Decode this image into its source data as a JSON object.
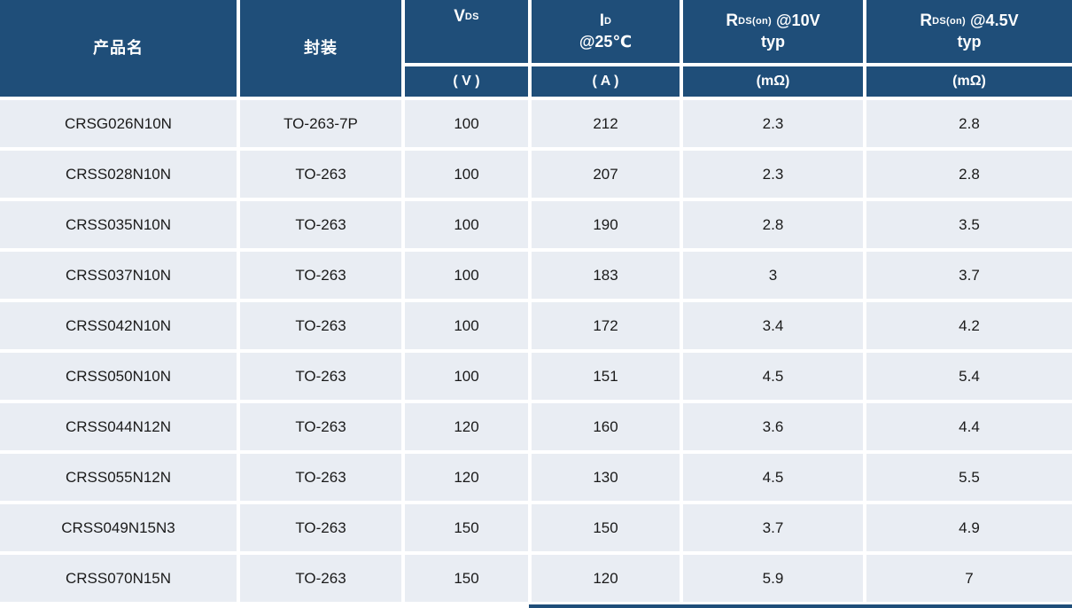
{
  "chart_data": {
    "type": "table",
    "header": {
      "product": "产品名",
      "package": "封装",
      "vds": {
        "symbol": "V",
        "sub": "DS",
        "unit": "( V )"
      },
      "id": {
        "symbol": "I",
        "sub": "D",
        "line2": "@25℃",
        "unit": "( A )"
      },
      "rds_10v": {
        "symbol": "R",
        "sub": "DS(on)",
        "cond": "@10V",
        "line2": "typ",
        "unit": "(mΩ)"
      },
      "rds_4v5": {
        "symbol": "R",
        "sub": "DS(on)",
        "cond": "@4.5V",
        "line2": "typ",
        "unit": "(mΩ)"
      }
    },
    "rows": [
      [
        "CRSG026N10N",
        "TO-263-7P",
        "100",
        "212",
        "2.3",
        "2.8"
      ],
      [
        "CRSS028N10N",
        "TO-263",
        "100",
        "207",
        "2.3",
        "2.8"
      ],
      [
        "CRSS035N10N",
        "TO-263",
        "100",
        "190",
        "2.8",
        "3.5"
      ],
      [
        "CRSS037N10N",
        "TO-263",
        "100",
        "183",
        "3",
        "3.7"
      ],
      [
        "CRSS042N10N",
        "TO-263",
        "100",
        "172",
        "3.4",
        "4.2"
      ],
      [
        "CRSS050N10N",
        "TO-263",
        "100",
        "151",
        "4.5",
        "5.4"
      ],
      [
        "CRSS044N12N",
        "TO-263",
        "120",
        "160",
        "3.6",
        "4.4"
      ],
      [
        "CRSS055N12N",
        "TO-263",
        "120",
        "130",
        "4.5",
        "5.5"
      ],
      [
        "CRSS049N15N3",
        "TO-263",
        "150",
        "150",
        "3.7",
        "4.9"
      ],
      [
        "CRSS070N15N",
        "TO-263",
        "150",
        "120",
        "5.9",
        "7"
      ]
    ],
    "colors": {
      "header_bg": "#1F4E79",
      "row_bg": "#E9EDF3",
      "grid_lines": "#FFFFFF",
      "header_text": "#FFFFFF",
      "body_text": "#1A1A1A"
    }
  }
}
